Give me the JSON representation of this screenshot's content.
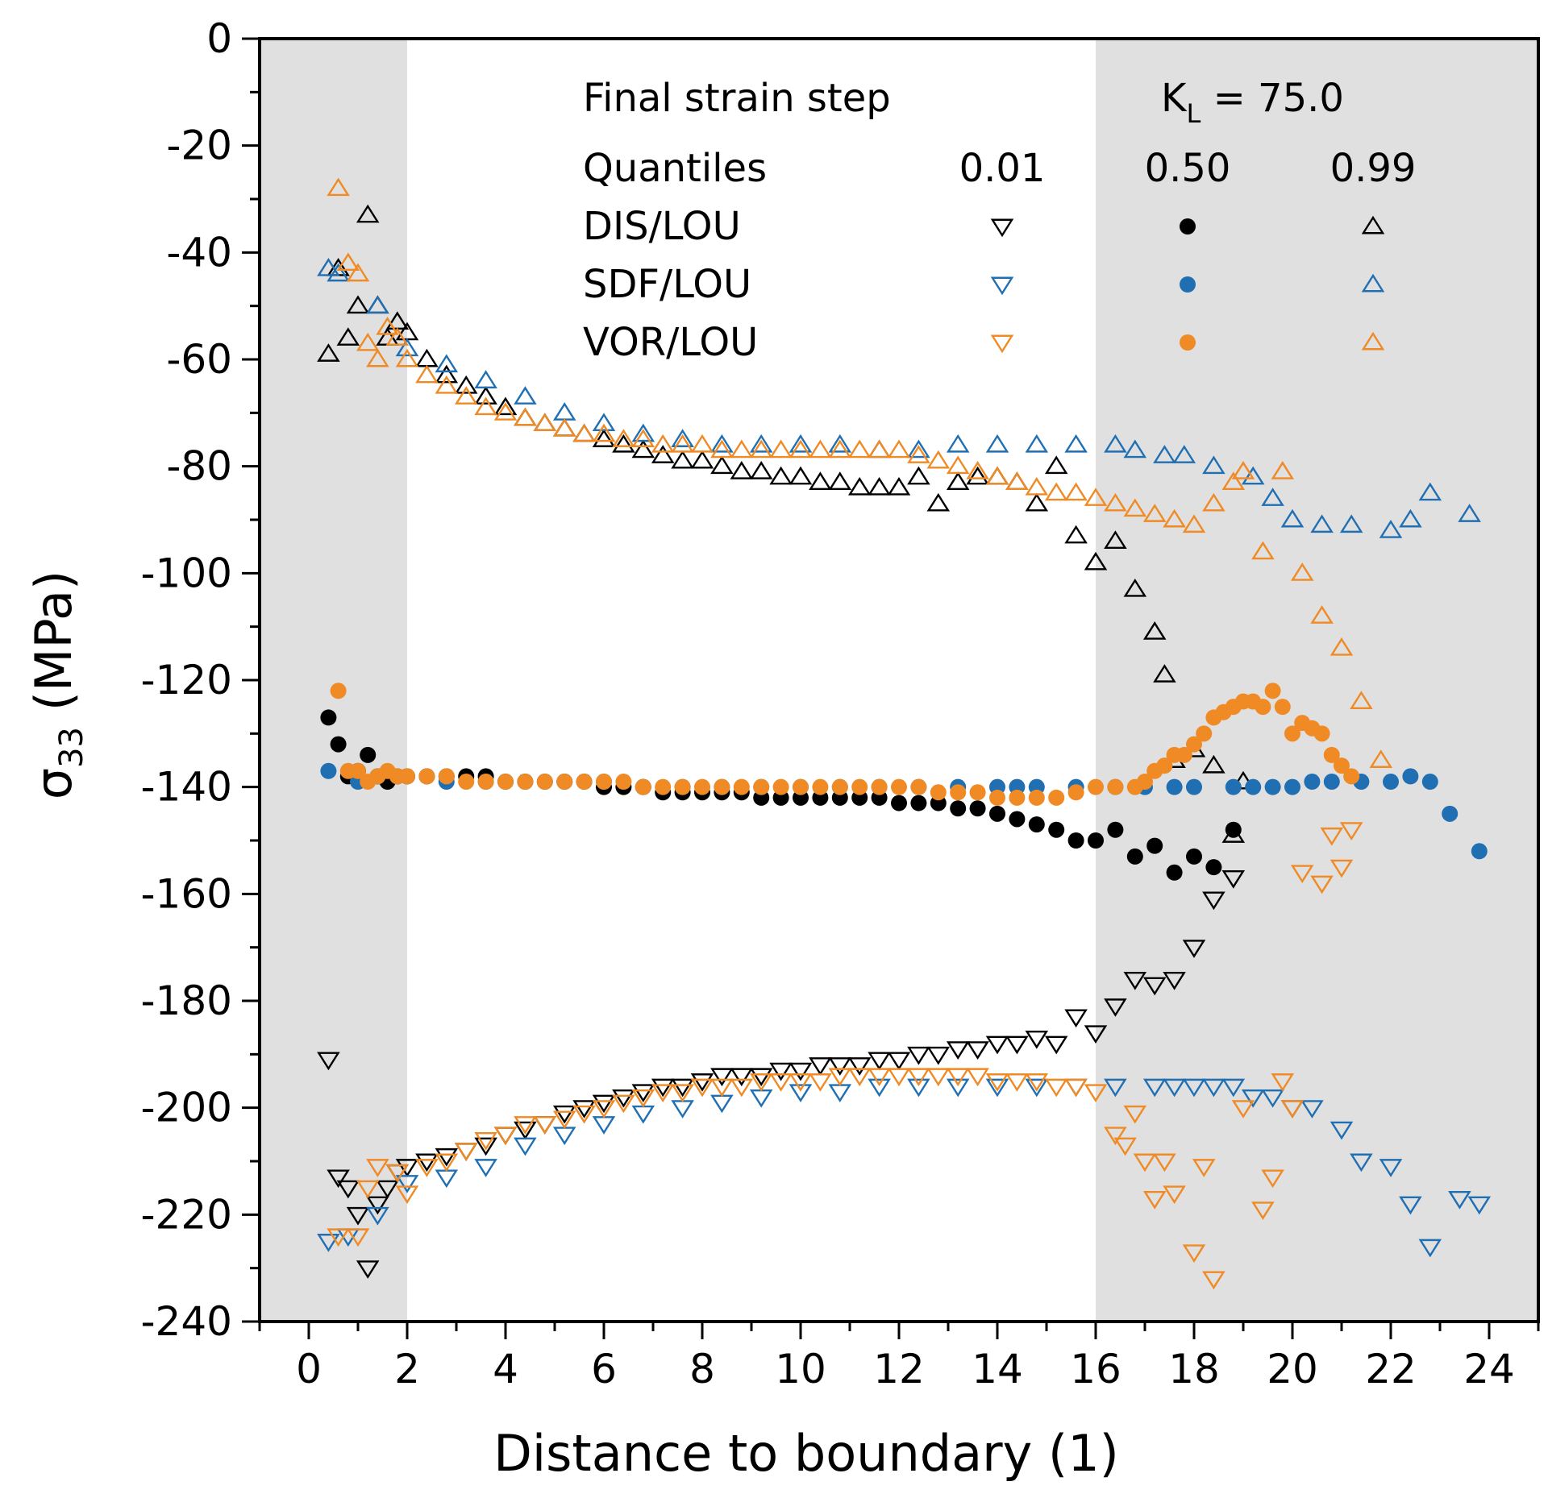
{
  "chart_data": {
    "type": "scatter",
    "title": "",
    "xlabel": "Distance to boundary (1)",
    "ylabel_main": "σ",
    "ylabel_sub": "33",
    "ylabel_unit": " (MPa)",
    "xlim": [
      -1,
      25
    ],
    "ylim": [
      -240,
      0
    ],
    "xticks": [
      0,
      2,
      4,
      6,
      8,
      10,
      12,
      14,
      16,
      18,
      20,
      22,
      24
    ],
    "yticks": [
      0,
      -20,
      -40,
      -60,
      -80,
      -100,
      -120,
      -140,
      -160,
      -180,
      -200,
      -220,
      -240
    ],
    "shaded_regions": [
      [
        -1,
        2
      ],
      [
        16,
        25
      ]
    ],
    "colors": {
      "DIS/LOU": "#000000",
      "SDF/LOU": "#1f6fb2",
      "VOR/LOU": "#f08a24",
      "shade": "#e0e0e0"
    },
    "legend": {
      "heading": "Final strain step",
      "kl_main": "K",
      "kl_sub": "L",
      "kl_rest": " = 75.0",
      "quantiles_label": "Quantiles",
      "quantiles": [
        "0.01",
        "0.50",
        "0.99"
      ],
      "rows": [
        "DIS/LOU",
        "SDF/LOU",
        "VOR/LOU"
      ],
      "placement": "top"
    },
    "series": [
      {
        "group": "DIS/LOU",
        "quantile": "0.99",
        "marker": "triangle-up",
        "x": [
          0.4,
          0.6,
          0.8,
          1.0,
          1.2,
          1.4,
          1.6,
          1.8,
          2.0,
          2.4,
          2.8,
          3.2,
          3.6,
          4.0,
          4.4,
          4.8,
          5.2,
          5.6,
          6.0,
          6.4,
          6.8,
          7.2,
          7.6,
          8.0,
          8.4,
          8.8,
          9.2,
          9.6,
          10.0,
          10.4,
          10.8,
          11.2,
          11.6,
          12.0,
          12.4,
          12.8,
          13.2,
          13.6,
          14.0,
          14.4,
          14.8,
          15.2,
          15.6,
          16.0,
          16.4,
          16.8,
          17.2,
          17.4,
          17.6,
          18.0,
          18.4,
          18.8,
          19.0
        ],
        "y": [
          -59,
          -43,
          -56,
          -50,
          -33,
          -50,
          -56,
          -53,
          -55,
          -60,
          -63,
          -65,
          -67,
          -69,
          -71,
          -72,
          -73,
          -74,
          -75,
          -76,
          -77,
          -78,
          -79,
          -79,
          -80,
          -81,
          -81,
          -82,
          -82,
          -83,
          -83,
          -84,
          -84,
          -84,
          -82,
          -87,
          -83,
          -82,
          -82,
          -83,
          -87,
          -80,
          -93,
          -98,
          -94,
          -103,
          -111,
          -119,
          -135,
          -133,
          -136,
          -149,
          -139
        ]
      },
      {
        "group": "DIS/LOU",
        "quantile": "0.50",
        "marker": "circle",
        "x": [
          0.4,
          0.6,
          0.8,
          1.0,
          1.2,
          1.4,
          1.6,
          1.8,
          2.0,
          2.4,
          2.8,
          3.2,
          3.6,
          4.0,
          4.4,
          4.8,
          5.2,
          5.6,
          6.0,
          6.4,
          6.8,
          7.2,
          7.6,
          8.0,
          8.4,
          8.8,
          9.2,
          9.6,
          10.0,
          10.4,
          10.8,
          11.2,
          11.6,
          12.0,
          12.4,
          12.8,
          13.2,
          13.6,
          14.0,
          14.4,
          14.8,
          15.2,
          15.6,
          16.0,
          16.4,
          16.8,
          17.2,
          17.6,
          18.0,
          18.4,
          18.8
        ],
        "y": [
          -127,
          -132,
          -138,
          -137,
          -134,
          -138,
          -139,
          -138,
          -138,
          -138,
          -138,
          -138,
          -138,
          -139,
          -139,
          -139,
          -139,
          -139,
          -140,
          -140,
          -140,
          -141,
          -141,
          -141,
          -141,
          -141,
          -142,
          -142,
          -142,
          -142,
          -142,
          -142,
          -142,
          -143,
          -143,
          -143,
          -144,
          -144,
          -145,
          -146,
          -147,
          -148,
          -150,
          -150,
          -148,
          -153,
          -151,
          -156,
          -153,
          -155,
          -148
        ]
      },
      {
        "group": "DIS/LOU",
        "quantile": "0.01",
        "marker": "triangle-down",
        "x": [
          0.4,
          0.6,
          0.8,
          1.0,
          1.2,
          1.4,
          1.6,
          1.8,
          2.0,
          2.4,
          2.8,
          3.2,
          3.6,
          4.0,
          4.4,
          4.8,
          5.2,
          5.6,
          6.0,
          6.4,
          6.8,
          7.2,
          7.6,
          8.0,
          8.4,
          8.8,
          9.2,
          9.6,
          10.0,
          10.4,
          10.8,
          11.2,
          11.6,
          12.0,
          12.4,
          12.8,
          13.2,
          13.6,
          14.0,
          14.4,
          14.8,
          15.2,
          15.6,
          16.0,
          16.4,
          16.8,
          17.2,
          17.6,
          18.0,
          18.4,
          18.8
        ],
        "y": [
          -191,
          -213,
          -215,
          -220,
          -230,
          -218,
          -215,
          -212,
          -211,
          -210,
          -209,
          -208,
          -207,
          -205,
          -204,
          -203,
          -201,
          -200,
          -199,
          -198,
          -197,
          -196,
          -196,
          -195,
          -194,
          -194,
          -194,
          -193,
          -193,
          -192,
          -192,
          -192,
          -191,
          -191,
          -190,
          -190,
          -189,
          -189,
          -188,
          -188,
          -187,
          -188,
          -183,
          -186,
          -181,
          -176,
          -177,
          -176,
          -170,
          -161,
          -157
        ]
      },
      {
        "group": "SDF/LOU",
        "quantile": "0.99",
        "marker": "triangle-up",
        "x": [
          0.4,
          0.6,
          1.4,
          2.0,
          2.8,
          3.6,
          4.4,
          5.2,
          6.0,
          6.8,
          7.6,
          8.4,
          9.2,
          10.0,
          10.8,
          11.6,
          12.4,
          13.2,
          14.0,
          14.8,
          15.6,
          16.4,
          16.8,
          17.4,
          17.8,
          18.4,
          19.2,
          19.6,
          20.0,
          20.6,
          21.2,
          22.0,
          22.4,
          22.8,
          23.6
        ],
        "y": [
          -43,
          -44,
          -50,
          -58,
          -61,
          -64,
          -67,
          -70,
          -72,
          -74,
          -75,
          -76,
          -76,
          -76,
          -76,
          -77,
          -77,
          -76,
          -76,
          -76,
          -76,
          -76,
          -77,
          -78,
          -78,
          -80,
          -82,
          -86,
          -90,
          -91,
          -91,
          -92,
          -90,
          -85,
          -89
        ]
      },
      {
        "group": "SDF/LOU",
        "quantile": "0.50",
        "marker": "circle",
        "x": [
          0.4,
          1.0,
          1.4,
          2.0,
          2.8,
          3.6,
          4.4,
          5.2,
          6.0,
          6.8,
          7.6,
          8.4,
          9.2,
          10.0,
          10.8,
          11.6,
          12.4,
          13.2,
          14.0,
          14.4,
          14.8,
          15.6,
          16.4,
          17.0,
          17.6,
          18.0,
          18.8,
          19.2,
          19.6,
          20.0,
          20.4,
          20.8,
          21.4,
          22.0,
          22.4,
          22.8,
          23.2,
          23.8
        ],
        "y": [
          -137,
          -139,
          -138,
          -138,
          -139,
          -139,
          -139,
          -139,
          -139,
          -140,
          -140,
          -140,
          -140,
          -140,
          -140,
          -140,
          -140,
          -140,
          -140,
          -140,
          -140,
          -140,
          -140,
          -140,
          -140,
          -140,
          -140,
          -140,
          -140,
          -140,
          -139,
          -139,
          -139,
          -139,
          -138,
          -139,
          -145,
          -152
        ]
      },
      {
        "group": "SDF/LOU",
        "quantile": "0.01",
        "marker": "triangle-down",
        "x": [
          0.4,
          0.8,
          1.4,
          2.0,
          2.8,
          3.6,
          4.4,
          5.2,
          6.0,
          6.8,
          7.6,
          8.4,
          9.2,
          10.0,
          10.8,
          11.6,
          12.4,
          13.2,
          14.0,
          14.8,
          15.6,
          16.4,
          17.2,
          17.6,
          18.0,
          18.4,
          18.8,
          19.2,
          19.6,
          20.0,
          20.4,
          21.0,
          21.4,
          22.0,
          22.4,
          22.8,
          23.4,
          23.8
        ],
        "y": [
          -225,
          -224,
          -220,
          -214,
          -213,
          -211,
          -207,
          -205,
          -203,
          -201,
          -200,
          -199,
          -198,
          -197,
          -197,
          -196,
          -196,
          -196,
          -196,
          -196,
          -196,
          -196,
          -196,
          -196,
          -196,
          -196,
          -196,
          -198,
          -198,
          -200,
          -200,
          -204,
          -210,
          -211,
          -218,
          -226,
          -217,
          -218
        ]
      },
      {
        "group": "VOR/LOU",
        "quantile": "0.99",
        "marker": "triangle-up",
        "x": [
          0.6,
          0.8,
          1.0,
          1.2,
          1.4,
          1.6,
          1.8,
          2.0,
          2.4,
          2.8,
          3.2,
          3.6,
          4.0,
          4.4,
          4.8,
          5.2,
          5.6,
          6.0,
          6.4,
          6.8,
          7.2,
          7.6,
          8.0,
          8.4,
          8.8,
          9.2,
          9.6,
          10.0,
          10.4,
          10.8,
          11.2,
          11.6,
          12.0,
          12.4,
          12.8,
          13.2,
          13.6,
          14.0,
          14.4,
          14.8,
          15.2,
          15.6,
          16.0,
          16.4,
          16.8,
          17.2,
          17.6,
          18.0,
          18.4,
          18.8,
          19.0,
          19.4,
          19.8,
          20.2,
          20.6,
          21.0,
          21.4,
          21.8
        ],
        "y": [
          -28,
          -42,
          -44,
          -57,
          -60,
          -54,
          -56,
          -60,
          -63,
          -65,
          -67,
          -69,
          -70,
          -71,
          -72,
          -73,
          -74,
          -74,
          -75,
          -75,
          -76,
          -76,
          -76,
          -77,
          -77,
          -77,
          -77,
          -77,
          -77,
          -77,
          -77,
          -77,
          -77,
          -78,
          -79,
          -80,
          -81,
          -82,
          -83,
          -84,
          -85,
          -85,
          -86,
          -87,
          -88,
          -89,
          -90,
          -91,
          -87,
          -83,
          -81,
          -96,
          -81,
          -100,
          -108,
          -114,
          -124,
          -135
        ]
      },
      {
        "group": "VOR/LOU",
        "quantile": "0.50",
        "marker": "circle",
        "x": [
          0.6,
          0.8,
          1.0,
          1.2,
          1.4,
          1.6,
          1.8,
          2.0,
          2.4,
          2.8,
          3.2,
          3.6,
          4.0,
          4.4,
          4.8,
          5.2,
          5.6,
          6.0,
          6.4,
          6.8,
          7.2,
          7.6,
          8.0,
          8.4,
          8.8,
          9.2,
          9.6,
          10.0,
          10.4,
          10.8,
          11.2,
          11.6,
          12.0,
          12.4,
          12.8,
          13.2,
          13.6,
          14.0,
          14.4,
          14.8,
          15.2,
          15.6,
          16.0,
          16.4,
          16.8,
          17.0,
          17.2,
          17.4,
          17.6,
          17.8,
          18.0,
          18.2,
          18.4,
          18.6,
          18.8,
          19.0,
          19.2,
          19.4,
          19.6,
          19.8,
          20.0,
          20.2,
          20.4,
          20.6,
          20.8,
          21.0,
          21.2
        ],
        "y": [
          -122,
          -137,
          -137,
          -139,
          -138,
          -137,
          -138,
          -138,
          -138,
          -138,
          -139,
          -139,
          -139,
          -139,
          -139,
          -139,
          -139,
          -139,
          -139,
          -140,
          -140,
          -140,
          -140,
          -140,
          -140,
          -140,
          -140,
          -140,
          -140,
          -140,
          -140,
          -140,
          -140,
          -140,
          -141,
          -141,
          -141,
          -142,
          -142,
          -142,
          -142,
          -141,
          -140,
          -140,
          -140,
          -139,
          -137,
          -136,
          -134,
          -134,
          -132,
          -130,
          -127,
          -126,
          -125,
          -124,
          -124,
          -125,
          -122,
          -125,
          -130,
          -128,
          -129,
          -130,
          -134,
          -136,
          -138
        ]
      },
      {
        "group": "VOR/LOU",
        "quantile": "0.01",
        "marker": "triangle-down",
        "x": [
          0.6,
          1.0,
          1.2,
          1.4,
          1.8,
          2.0,
          2.4,
          2.8,
          3.2,
          3.6,
          4.0,
          4.4,
          4.8,
          5.2,
          5.6,
          6.0,
          6.4,
          6.8,
          7.2,
          7.6,
          8.0,
          8.4,
          8.8,
          9.2,
          9.6,
          10.0,
          10.4,
          10.8,
          11.2,
          11.6,
          12.0,
          12.4,
          12.8,
          13.2,
          13.6,
          14.0,
          14.4,
          14.8,
          15.2,
          15.6,
          16.0,
          16.4,
          16.6,
          16.8,
          17.0,
          17.2,
          17.4,
          17.6,
          18.0,
          18.2,
          18.4,
          19.0,
          19.4,
          19.6,
          19.8,
          20.0,
          20.2,
          20.6,
          20.8,
          21.0,
          21.2
        ],
        "y": [
          -224,
          -224,
          -215,
          -211,
          -212,
          -216,
          -211,
          -210,
          -208,
          -206,
          -205,
          -203,
          -203,
          -202,
          -201,
          -200,
          -199,
          -198,
          -197,
          -197,
          -196,
          -196,
          -196,
          -195,
          -195,
          -195,
          -195,
          -194,
          -194,
          -194,
          -194,
          -194,
          -194,
          -194,
          -194,
          -195,
          -195,
          -195,
          -196,
          -196,
          -197,
          -205,
          -207,
          -201,
          -210,
          -217,
          -210,
          -216,
          -227,
          -211,
          -232,
          -200,
          -219,
          -213,
          -195,
          -200,
          -156,
          -158,
          -149,
          -155,
          -148
        ]
      }
    ]
  }
}
